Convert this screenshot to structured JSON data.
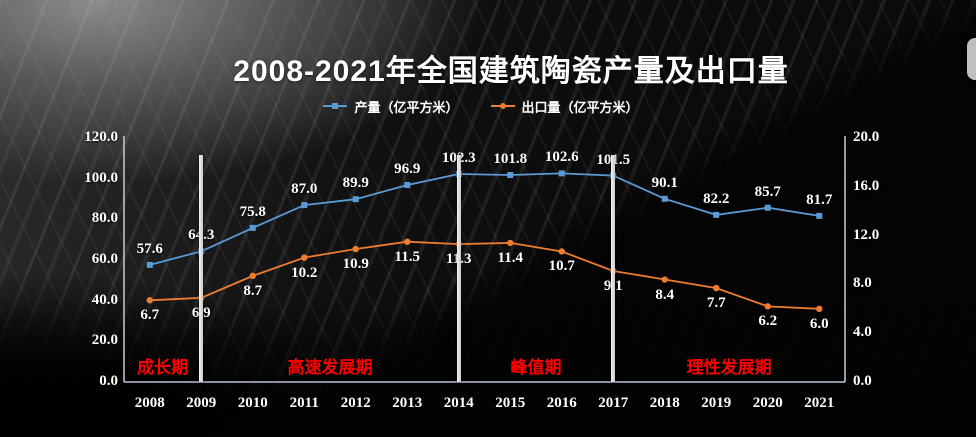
{
  "title": "2008-2021年全国建筑陶瓷产量及出口量",
  "legend": [
    {
      "label": "产量（亿平方米）",
      "color": "#5B9BD5",
      "marker": "square"
    },
    {
      "label": "出口量（亿平方米）",
      "color": "#ED7D31",
      "marker": "circle"
    }
  ],
  "chart_data": {
    "type": "line",
    "categories": [
      "2008",
      "2009",
      "2010",
      "2011",
      "2012",
      "2013",
      "2014",
      "2015",
      "2016",
      "2017",
      "2018",
      "2019",
      "2020",
      "2021"
    ],
    "series": [
      {
        "name": "产量（亿平方米）",
        "axis": "left",
        "color": "#5B9BD5",
        "marker": "square",
        "label_position": "above",
        "values": [
          57.6,
          64.3,
          75.8,
          87.0,
          89.9,
          96.9,
          102.3,
          101.8,
          102.6,
          101.5,
          90.1,
          82.2,
          85.7,
          81.7
        ]
      },
      {
        "name": "出口量（亿平方米）",
        "axis": "right",
        "color": "#ED7D31",
        "marker": "circle",
        "label_position": "below",
        "values": [
          6.7,
          6.9,
          8.7,
          10.2,
          10.9,
          11.5,
          11.3,
          11.4,
          10.7,
          9.1,
          8.4,
          7.7,
          6.2,
          6.0
        ]
      }
    ],
    "left_axis": {
      "min": 0,
      "max": 120,
      "step": 20,
      "tick_labels": [
        "120.0",
        "100.0",
        "80.0",
        "60.0",
        "40.0",
        "20.0",
        "0.0"
      ]
    },
    "right_axis": {
      "min": 0,
      "max": 20,
      "step": 4,
      "tick_labels": [
        "20.0",
        "16.0",
        "12.0",
        "8.0",
        "4.0",
        "0.0"
      ]
    },
    "grid": false,
    "legend_position": "top",
    "phases": [
      {
        "label": "成长期"
      },
      {
        "label": "高速发展期"
      },
      {
        "label": "峰值期"
      },
      {
        "label": "理性发展期"
      }
    ],
    "divider_category_indices": [
      1,
      6,
      9
    ]
  },
  "colors": {
    "production_line": "#5B9BD5",
    "export_line": "#ED7D31",
    "phase_text": "#ff0000",
    "divider": "#d9d9d9",
    "axis_line": "#b7c3d5",
    "data_label_text": "#ffffff",
    "title_text": "#ffffff"
  }
}
